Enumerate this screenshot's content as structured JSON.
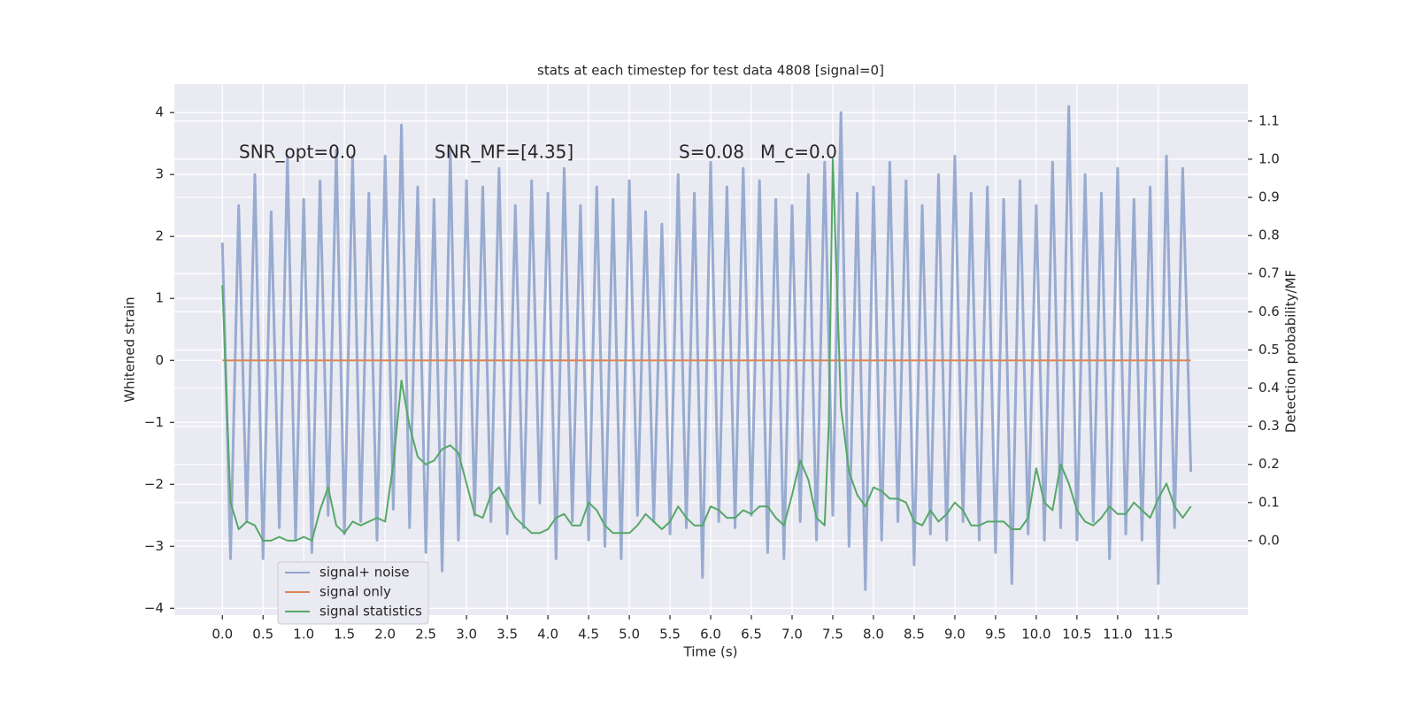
{
  "chart_data": {
    "type": "line",
    "title": "stats at each timestep for test data 4808 [signal=0]",
    "xlabel": "Time (s)",
    "ylabel": "Whitened strain",
    "y2label": "Detection probability/MF",
    "annotations": [
      "SNR_opt=0.0",
      "SNR_MF=[4.35]",
      "S=0.08",
      "M_c=0.0"
    ],
    "xlim": [
      -0.59,
      12.6
    ],
    "ylim": [
      -4.11,
      4.46
    ],
    "y2lim": [
      -0.195,
      1.197
    ],
    "xticks": [
      {
        "value": 0,
        "label": "0.0"
      },
      {
        "value": 0.5,
        "label": "0.5"
      },
      {
        "value": 1,
        "label": "1.0"
      },
      {
        "value": 1.5,
        "label": "1.5"
      },
      {
        "value": 2,
        "label": "2.0"
      },
      {
        "value": 2.5,
        "label": "2.5"
      },
      {
        "value": 3,
        "label": "3.0"
      },
      {
        "value": 3.5,
        "label": "3.5"
      },
      {
        "value": 4,
        "label": "4.0"
      },
      {
        "value": 4.5,
        "label": "4.5"
      },
      {
        "value": 5,
        "label": "5.0"
      },
      {
        "value": 5.5,
        "label": "5.5"
      },
      {
        "value": 6,
        "label": "6.0"
      },
      {
        "value": 6.5,
        "label": "6.5"
      },
      {
        "value": 7,
        "label": "7.0"
      },
      {
        "value": 7.5,
        "label": "7.5"
      },
      {
        "value": 8,
        "label": "8.0"
      },
      {
        "value": 8.5,
        "label": "8.5"
      },
      {
        "value": 9,
        "label": "9.0"
      },
      {
        "value": 9.5,
        "label": "9.5"
      },
      {
        "value": 10,
        "label": "10.0"
      },
      {
        "value": 10.5,
        "label": "10.5"
      },
      {
        "value": 11,
        "label": "11.0"
      },
      {
        "value": 11.5,
        "label": "11.5"
      }
    ],
    "yticks": [
      {
        "value": -4,
        "label": "−4"
      },
      {
        "value": -3,
        "label": "−3"
      },
      {
        "value": -2,
        "label": "−2"
      },
      {
        "value": -1,
        "label": "−1"
      },
      0,
      1,
      2,
      3,
      4
    ],
    "y2ticks": [
      {
        "value": 0,
        "label": "0.0"
      },
      {
        "value": 0.1,
        "label": "0.1"
      },
      {
        "value": 0.2,
        "label": "0.2"
      },
      {
        "value": 0.3,
        "label": "0.3"
      },
      {
        "value": 0.4,
        "label": "0.4"
      },
      {
        "value": 0.5,
        "label": "0.5"
      },
      {
        "value": 0.6,
        "label": "0.6"
      },
      {
        "value": 0.7,
        "label": "0.7"
      },
      {
        "value": 0.8,
        "label": "0.8"
      },
      {
        "value": 0.9,
        "label": "0.9"
      },
      {
        "value": 1,
        "label": "1.0"
      },
      {
        "value": 1.1,
        "label": "1.1"
      }
    ],
    "grid": true,
    "legend": "lower left",
    "series": [
      {
        "name": "signal+ noise",
        "color": "#8fa4cc",
        "axis": "y",
        "x": [
          0,
          0.1,
          0.2,
          0.3,
          0.4,
          0.5,
          0.6,
          0.7,
          0.8,
          0.9,
          1,
          1.1,
          1.2,
          1.3,
          1.4,
          1.5,
          1.6,
          1.7,
          1.8,
          1.9,
          2,
          2.1,
          2.2,
          2.3,
          2.4,
          2.5,
          2.6,
          2.7,
          2.8,
          2.9,
          3,
          3.1,
          3.2,
          3.3,
          3.4,
          3.5,
          3.6,
          3.7,
          3.8,
          3.9,
          4,
          4.1,
          4.2,
          4.3,
          4.4,
          4.5,
          4.6,
          4.7,
          4.8,
          4.9,
          5,
          5.1,
          5.2,
          5.3,
          5.4,
          5.5,
          5.6,
          5.7,
          5.8,
          5.9,
          6,
          6.1,
          6.2,
          6.3,
          6.4,
          6.5,
          6.6,
          6.7,
          6.8,
          6.9,
          7,
          7.1,
          7.2,
          7.3,
          7.4,
          7.5,
          7.6,
          7.7,
          7.8,
          7.9,
          8,
          8.1,
          8.2,
          8.3,
          8.4,
          8.5,
          8.6,
          8.7,
          8.8,
          8.9,
          9,
          9.1,
          9.2,
          9.3,
          9.4,
          9.5,
          9.6,
          9.7,
          9.8,
          9.9,
          10,
          10.1,
          10.2,
          10.3,
          10.4,
          10.5,
          10.6,
          10.7,
          10.8,
          10.9,
          11,
          11.1,
          11.2,
          11.3,
          11.4,
          11.5,
          11.6,
          11.7,
          11.8,
          11.9
        ],
        "values": [
          1.9,
          -3.2,
          2.5,
          -2.6,
          3.0,
          -3.2,
          2.4,
          -2.7,
          3.3,
          -2.9,
          2.6,
          -3.1,
          2.9,
          -2.5,
          3.4,
          -2.8,
          3.3,
          -2.6,
          2.7,
          -2.9,
          3.3,
          -2.4,
          3.8,
          -2.7,
          2.8,
          -3.1,
          2.6,
          -3.4,
          3.4,
          -2.9,
          2.9,
          -2.5,
          2.8,
          -2.6,
          3.1,
          -2.8,
          2.5,
          -2.7,
          2.9,
          -2.3,
          2.7,
          -3.2,
          3.1,
          -2.6,
          2.5,
          -2.9,
          2.8,
          -3.0,
          2.6,
          -3.2,
          2.9,
          -2.5,
          2.4,
          -2.6,
          2.2,
          -2.8,
          3.0,
          -2.7,
          2.7,
          -3.5,
          3.2,
          -2.6,
          2.8,
          -2.7,
          3.1,
          -2.5,
          2.9,
          -3.1,
          2.6,
          -3.2,
          2.5,
          -2.6,
          3.0,
          -2.9,
          3.2,
          -2.5,
          4.0,
          -3.0,
          2.7,
          -3.7,
          2.8,
          -2.9,
          3.2,
          -2.6,
          2.9,
          -3.3,
          2.5,
          -2.8,
          3.0,
          -2.9,
          3.3,
          -2.6,
          2.7,
          -2.9,
          2.8,
          -3.1,
          2.6,
          -3.6,
          2.9,
          -2.8,
          2.5,
          -2.9,
          3.2,
          -2.7,
          4.1,
          -2.9,
          3.0,
          -2.6,
          2.7,
          -3.2,
          3.1,
          -2.8,
          2.6,
          -2.9,
          2.8,
          -3.6,
          3.3,
          -2.7,
          3.1,
          -1.8
        ]
      },
      {
        "name": "signal only",
        "color": "#dd8452",
        "axis": "y",
        "x": [
          0,
          11.9
        ],
        "values": [
          0,
          0
        ]
      },
      {
        "name": "signal statistics",
        "color": "#55a868",
        "axis": "y2",
        "x": [
          0,
          0.1,
          0.2,
          0.3,
          0.4,
          0.5,
          0.6,
          0.7,
          0.8,
          0.9,
          1,
          1.1,
          1.2,
          1.3,
          1.4,
          1.5,
          1.6,
          1.7,
          1.8,
          1.9,
          2,
          2.1,
          2.2,
          2.3,
          2.4,
          2.5,
          2.6,
          2.7,
          2.8,
          2.9,
          3,
          3.1,
          3.2,
          3.3,
          3.4,
          3.5,
          3.6,
          3.7,
          3.8,
          3.9,
          4,
          4.1,
          4.2,
          4.3,
          4.4,
          4.5,
          4.6,
          4.7,
          4.8,
          4.9,
          5,
          5.1,
          5.2,
          5.3,
          5.4,
          5.5,
          5.6,
          5.7,
          5.8,
          5.9,
          6,
          6.1,
          6.2,
          6.3,
          6.4,
          6.5,
          6.6,
          6.7,
          6.8,
          6.9,
          7,
          7.1,
          7.2,
          7.3,
          7.4,
          7.45,
          7.5,
          7.6,
          7.7,
          7.8,
          7.9,
          8,
          8.1,
          8.2,
          8.3,
          8.4,
          8.5,
          8.6,
          8.7,
          8.8,
          8.9,
          9,
          9.1,
          9.2,
          9.3,
          9.4,
          9.5,
          9.6,
          9.7,
          9.8,
          9.9,
          10,
          10.1,
          10.2,
          10.3,
          10.4,
          10.5,
          10.6,
          10.7,
          10.8,
          10.9,
          11,
          11.1,
          11.2,
          11.3,
          11.4,
          11.5,
          11.6,
          11.7,
          11.8,
          11.9
        ],
        "values": [
          0.67,
          0.1,
          0.03,
          0.05,
          0.04,
          0,
          0,
          0.01,
          0,
          0,
          0.01,
          0,
          0.08,
          0.14,
          0.04,
          0.02,
          0.05,
          0.04,
          0.05,
          0.06,
          0.05,
          0.2,
          0.42,
          0.3,
          0.22,
          0.2,
          0.21,
          0.24,
          0.25,
          0.23,
          0.15,
          0.07,
          0.06,
          0.12,
          0.14,
          0.1,
          0.06,
          0.04,
          0.02,
          0.02,
          0.03,
          0.06,
          0.07,
          0.04,
          0.04,
          0.1,
          0.08,
          0.04,
          0.02,
          0.02,
          0.02,
          0.04,
          0.07,
          0.05,
          0.03,
          0.05,
          0.09,
          0.06,
          0.04,
          0.04,
          0.09,
          0.08,
          0.06,
          0.06,
          0.08,
          0.07,
          0.09,
          0.09,
          0.06,
          0.04,
          0.12,
          0.21,
          0.16,
          0.06,
          0.04,
          0.3,
          1.0,
          0.35,
          0.18,
          0.12,
          0.09,
          0.14,
          0.13,
          0.11,
          0.11,
          0.1,
          0.05,
          0.04,
          0.08,
          0.05,
          0.07,
          0.1,
          0.08,
          0.04,
          0.04,
          0.05,
          0.05,
          0.05,
          0.03,
          0.03,
          0.06,
          0.19,
          0.1,
          0.08,
          0.2,
          0.15,
          0.08,
          0.05,
          0.04,
          0.06,
          0.09,
          0.07,
          0.07,
          0.1,
          0.08,
          0.06,
          0.11,
          0.15,
          0.09,
          0.06,
          0.09
        ]
      }
    ]
  }
}
